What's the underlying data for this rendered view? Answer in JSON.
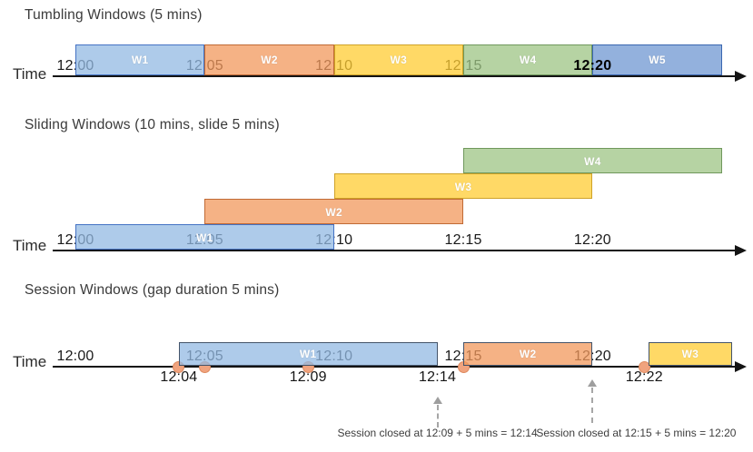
{
  "colors": {
    "blue_light": {
      "fill": "rgba(147,186,227,0.75)",
      "border": "#4472c4"
    },
    "orange": {
      "fill": "rgba(242,152,92,0.75)",
      "border": "#c06a35"
    },
    "yellow": {
      "fill": "rgba(255,204,51,0.75)",
      "border": "#cfa227"
    },
    "green": {
      "fill": "rgba(158,196,132,0.75)",
      "border": "#70985c"
    },
    "blue_mid": {
      "fill": "rgba(111,151,210,0.75)",
      "border": "#3a66b0"
    },
    "event_dot_fill": "#f0a37e",
    "event_dot_border": "#de8a5f",
    "session_box_border": "#44546a",
    "timeline": "#141414",
    "dashed_arrow": "#a6a6a6"
  },
  "sections": [
    {
      "id": "tumbling",
      "title": "Tumbling Windows (5 mins)",
      "time_label": "Time",
      "ticks": [
        {
          "label": "12:00",
          "t": 0
        },
        {
          "label": "12:05",
          "t": 5
        },
        {
          "label": "12:10",
          "t": 10
        },
        {
          "label": "12:15",
          "t": 15
        },
        {
          "label": "12:20",
          "t": 20,
          "strong": true
        }
      ],
      "windows": [
        {
          "name": "W1",
          "start": 0,
          "end": 5,
          "color": "blue_light"
        },
        {
          "name": "W2",
          "start": 5,
          "end": 10,
          "color": "orange"
        },
        {
          "name": "W3",
          "start": 10,
          "end": 15,
          "color": "yellow"
        },
        {
          "name": "W4",
          "start": 15,
          "end": 20,
          "color": "green"
        },
        {
          "name": "W5",
          "start": 20,
          "end": 25,
          "color": "blue_mid"
        }
      ]
    },
    {
      "id": "sliding",
      "title": "Sliding Windows (10 mins, slide 5 mins)",
      "time_label": "Time",
      "ticks": [
        {
          "label": "12:00",
          "t": 0
        },
        {
          "label": "12:05",
          "t": 5
        },
        {
          "label": "12:10",
          "t": 10
        },
        {
          "label": "12:15",
          "t": 15
        },
        {
          "label": "12:20",
          "t": 20
        }
      ],
      "windows": [
        {
          "name": "W1",
          "start": 0,
          "end": 10,
          "color": "blue_light",
          "row": 0
        },
        {
          "name": "W2",
          "start": 5,
          "end": 15,
          "color": "orange",
          "row": 1
        },
        {
          "name": "W3",
          "start": 10,
          "end": 20,
          "color": "yellow",
          "row": 2
        },
        {
          "name": "W4",
          "start": 15,
          "end": 25,
          "color": "green",
          "row": 3
        }
      ]
    },
    {
      "id": "session",
      "title": "Session Windows (gap duration 5 mins)",
      "time_label": "Time",
      "ticks": [
        {
          "label": "12:00",
          "t": 0
        },
        {
          "label": "12:05",
          "t": 5
        },
        {
          "label": "12:10",
          "t": 10
        },
        {
          "label": "12:15",
          "t": 15
        },
        {
          "label": "12:20",
          "t": 20
        }
      ],
      "windows": [
        {
          "name": "W1",
          "start": 4,
          "end": 14,
          "color": "blue_light"
        },
        {
          "name": "W2",
          "start": 15,
          "end": 20,
          "color": "orange"
        },
        {
          "name": "W3",
          "start": 22.15,
          "end": 25.4,
          "color": "yellow"
        }
      ],
      "events": [
        {
          "time": "12:04",
          "t": 4
        },
        {
          "time": "12:05",
          "t": 5
        },
        {
          "time": "12:09",
          "t": 9
        },
        {
          "time": "12:15",
          "t": 15
        },
        {
          "time": "12:22",
          "t": 22
        }
      ],
      "labels_below": [
        {
          "label": "12:04",
          "t": 4
        },
        {
          "label": "12:09",
          "t": 9
        },
        {
          "label": "12:14",
          "t": 14
        },
        {
          "label": "12:22",
          "t": 22
        }
      ],
      "annotations": [
        {
          "text": "Session closed at 12:09 + 5 mins = 12:14",
          "arrow_t": 14
        },
        {
          "text": "Session closed at 12:15 + 5 mins = 12:20",
          "arrow_t": 20
        }
      ]
    }
  ]
}
